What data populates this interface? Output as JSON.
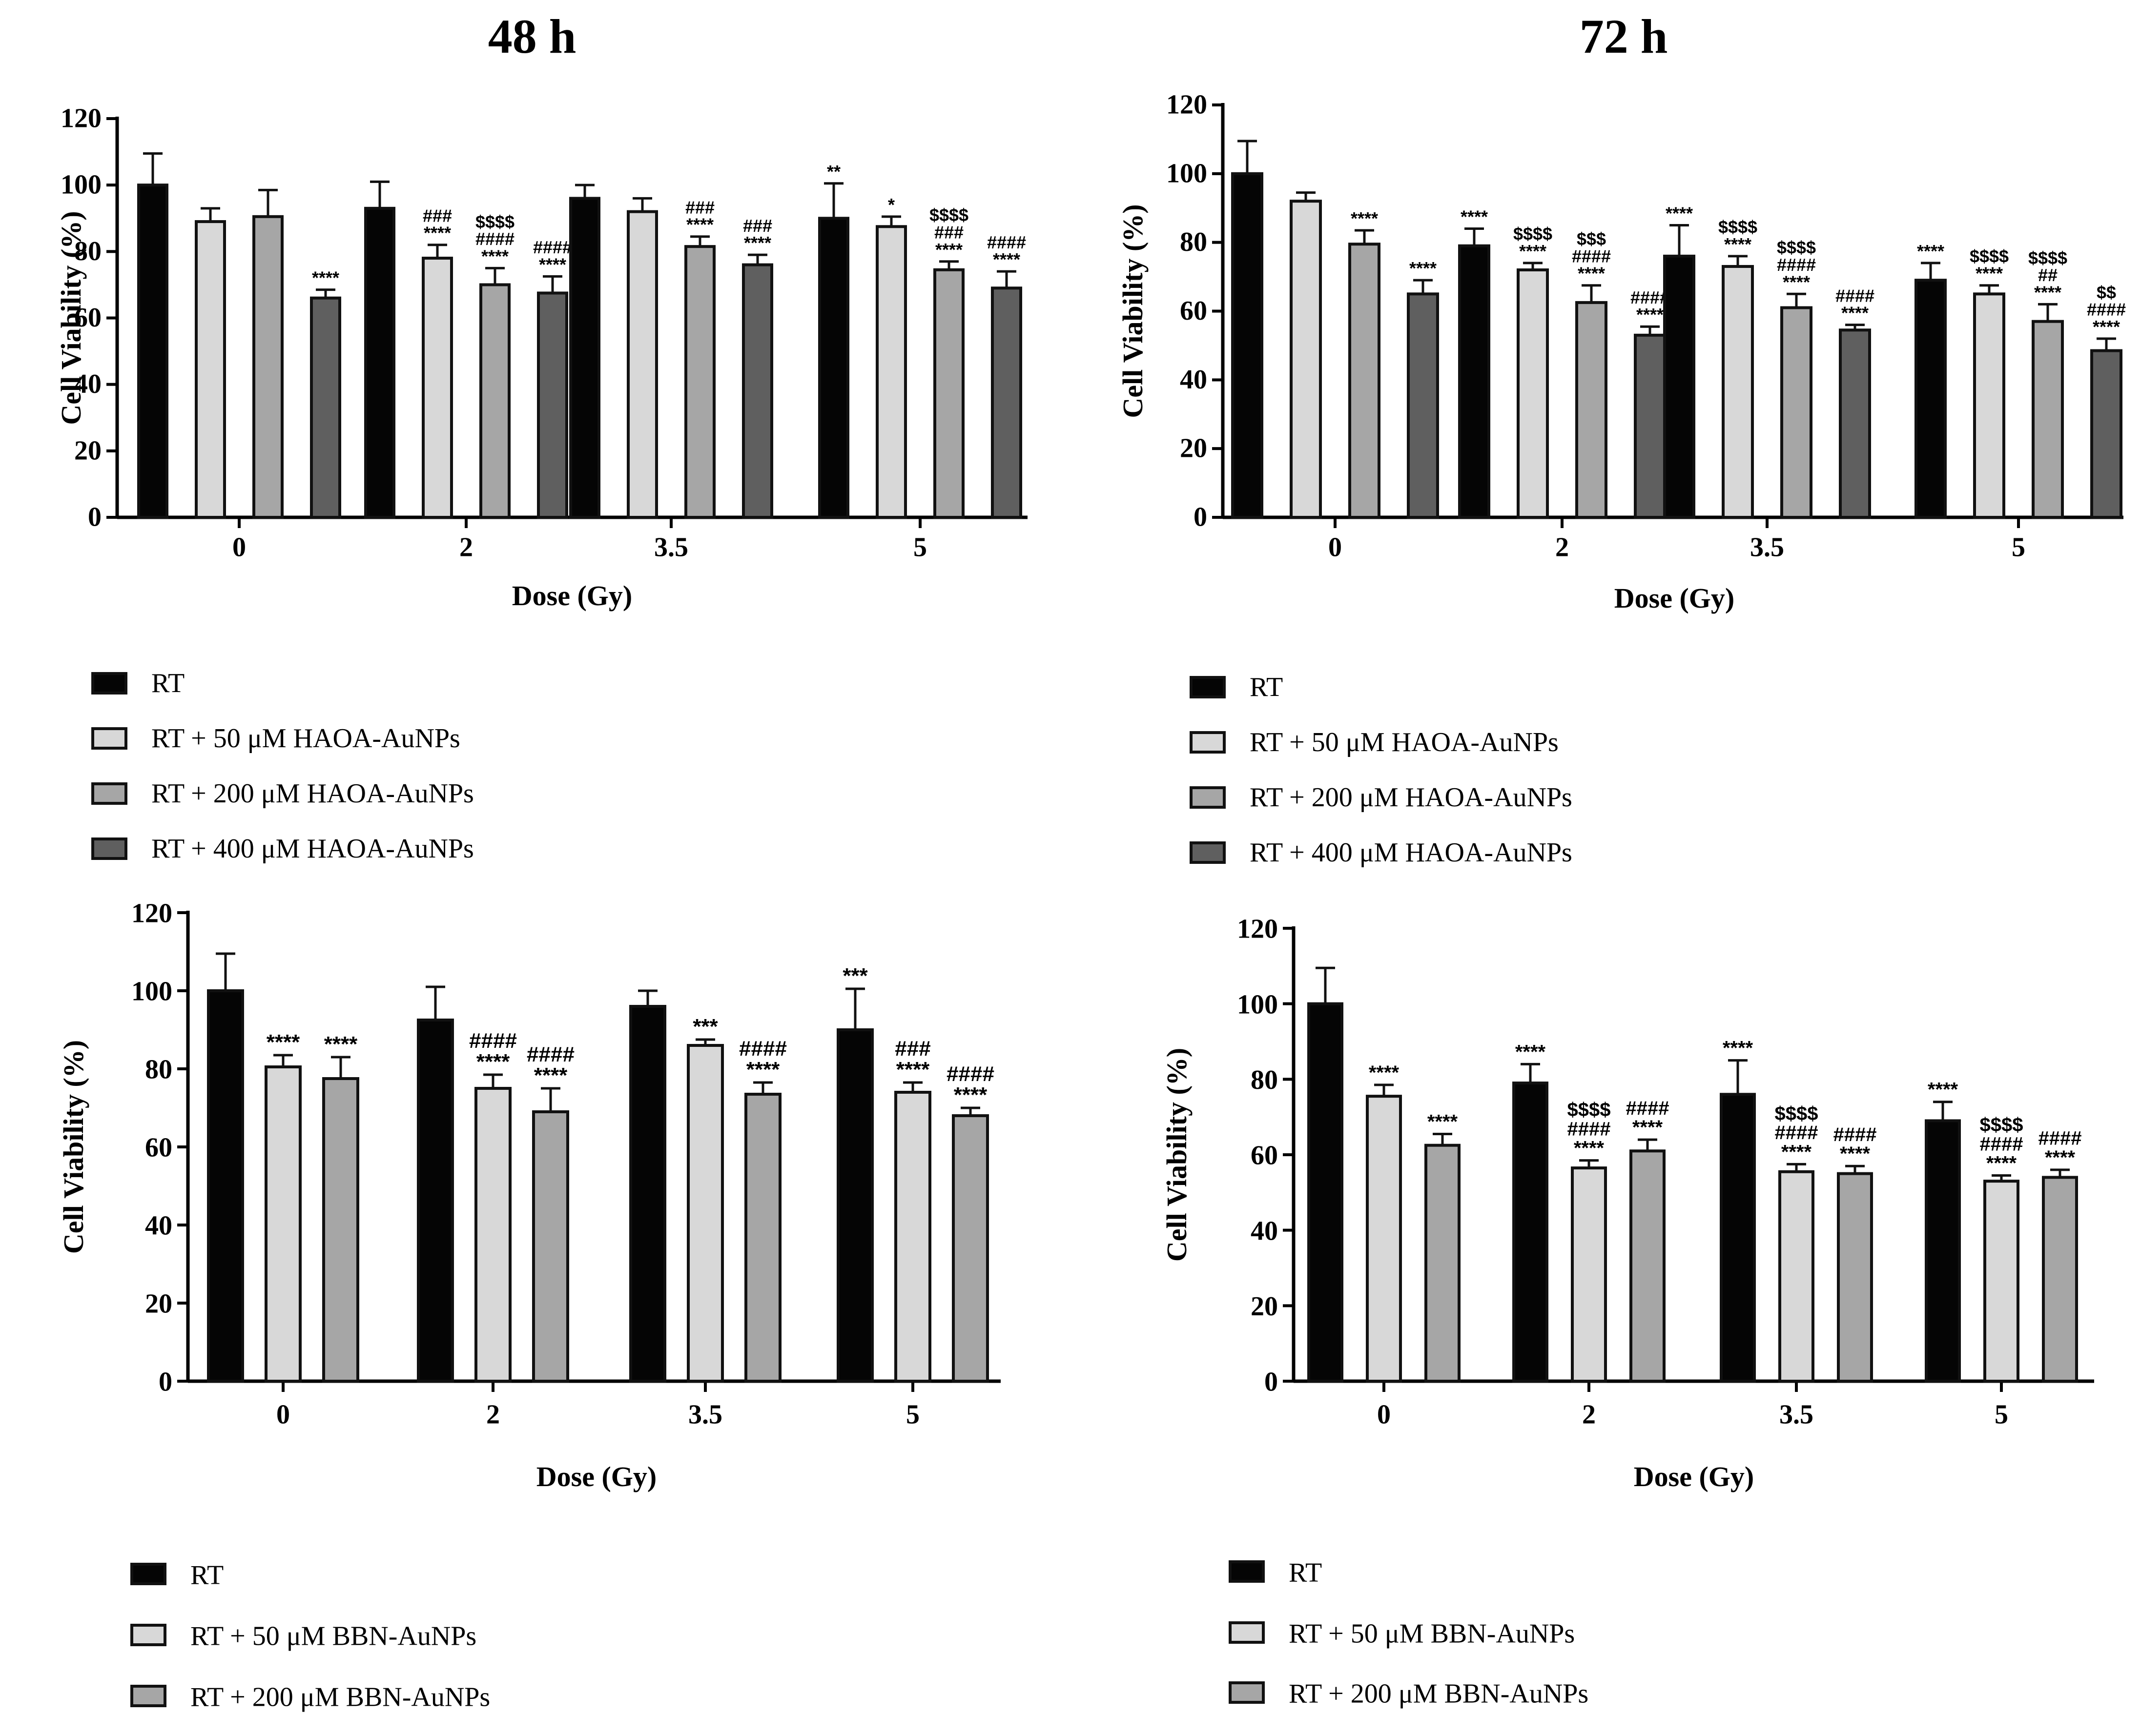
{
  "headers": [
    "48 h",
    "72 h"
  ],
  "colors": {
    "RT": "#050505",
    "c50": "#d8d8d8",
    "c200": "#a6a6a6",
    "c400": "#5f5f5f",
    "edge": "#111111"
  },
  "chart_data": [
    {
      "type": "bar",
      "panel": "top-left",
      "timepoint": "48 h",
      "xlabel": "Dose (Gy)",
      "ylabel": "Cell Viability (%)",
      "ylim": [
        0,
        120
      ],
      "yticks": [
        0,
        20,
        40,
        60,
        80,
        100,
        120
      ],
      "categories": [
        "0",
        "2",
        "3.5",
        "5"
      ],
      "series": [
        {
          "name": "RT",
          "color": "#050505",
          "values": [
            100,
            93,
            96,
            90
          ],
          "errors": [
            9.5,
            8,
            4,
            10.5
          ],
          "labels": [
            [],
            [],
            [],
            [
              "**"
            ]
          ]
        },
        {
          "name": "RT + 50 μM HAOA-AuNPs",
          "color": "#d8d8d8",
          "values": [
            89,
            78,
            92,
            87.5
          ],
          "errors": [
            4,
            4,
            4,
            3
          ],
          "labels": [
            [],
            [
              "###",
              "****"
            ],
            [],
            [
              "*"
            ]
          ]
        },
        {
          "name": "RT + 200 μM HAOA-AuNPs",
          "color": "#a6a6a6",
          "values": [
            90.5,
            70,
            81.5,
            74.5
          ],
          "errors": [
            8,
            5,
            3,
            2.5
          ],
          "labels": [
            [],
            [
              "$$$$",
              "####",
              "****"
            ],
            [
              "###",
              "****"
            ],
            [
              "$$$$",
              "###",
              "****"
            ]
          ]
        },
        {
          "name": "RT + 400 μM HAOA-AuNPs",
          "color": "#5f5f5f",
          "values": [
            66,
            67.5,
            76,
            69
          ],
          "errors": [
            2.5,
            5,
            3,
            5
          ],
          "labels": [
            [
              "****"
            ],
            [
              "####",
              "****"
            ],
            [
              "###",
              "****"
            ],
            [
              "####",
              "****"
            ]
          ]
        }
      ]
    },
    {
      "type": "bar",
      "panel": "top-right",
      "timepoint": "72 h",
      "xlabel": "Dose (Gy)",
      "ylabel": "Cell Viability (%)",
      "ylim": [
        0,
        120
      ],
      "yticks": [
        0,
        20,
        40,
        60,
        80,
        100,
        120
      ],
      "categories": [
        "0",
        "2",
        "3.5",
        "5"
      ],
      "series": [
        {
          "name": "RT",
          "color": "#050505",
          "values": [
            100,
            79,
            76,
            69
          ],
          "errors": [
            9.5,
            5,
            9,
            5
          ],
          "labels": [
            [],
            [
              "****"
            ],
            [
              "****"
            ],
            [
              "****"
            ]
          ]
        },
        {
          "name": "RT + 50 μM HAOA-AuNPs",
          "color": "#d8d8d8",
          "values": [
            92,
            72,
            73,
            65
          ],
          "errors": [
            2.5,
            2,
            3,
            2.5
          ],
          "labels": [
            [],
            [
              "$$$$",
              "****"
            ],
            [
              "$$$$",
              "****"
            ],
            [
              "$$$$",
              "****"
            ]
          ]
        },
        {
          "name": "RT + 200 μM HAOA-AuNPs",
          "color": "#a6a6a6",
          "values": [
            79.5,
            62.5,
            61,
            57
          ],
          "errors": [
            4,
            5,
            4,
            5
          ],
          "labels": [
            [
              "****"
            ],
            [
              "$$$",
              "####",
              "****"
            ],
            [
              "$$$$",
              "####",
              "****"
            ],
            [
              "$$$$",
              "##",
              "****"
            ]
          ]
        },
        {
          "name": "RT + 400 μM HAOA-AuNPs",
          "color": "#5f5f5f",
          "values": [
            65,
            53,
            54.5,
            48.5
          ],
          "errors": [
            4,
            2.5,
            1.5,
            3.5
          ],
          "labels": [
            [
              "****"
            ],
            [
              "####",
              "****"
            ],
            [
              "####",
              "****"
            ],
            [
              "$$",
              "####",
              "****"
            ]
          ]
        }
      ]
    },
    {
      "type": "bar",
      "panel": "bottom-left",
      "timepoint": "48 h",
      "xlabel": "Dose (Gy)",
      "ylabel": "Cell Viability (%)",
      "ylim": [
        0,
        120
      ],
      "yticks": [
        0,
        20,
        40,
        60,
        80,
        100,
        120
      ],
      "categories": [
        "0",
        "2",
        "3.5",
        "5"
      ],
      "series": [
        {
          "name": "RT",
          "color": "#050505",
          "values": [
            100,
            92.5,
            96,
            90
          ],
          "errors": [
            9.5,
            8.5,
            4,
            10.5
          ],
          "labels": [
            [],
            [],
            [],
            [
              "***"
            ]
          ]
        },
        {
          "name": "RT + 50 μM BBN-AuNPs",
          "color": "#d8d8d8",
          "values": [
            80.5,
            75,
            86,
            74
          ],
          "errors": [
            3,
            3.5,
            1.5,
            2.5
          ],
          "labels": [
            [
              "****"
            ],
            [
              "####",
              "****"
            ],
            [
              "***"
            ],
            [
              "###",
              "****"
            ]
          ]
        },
        {
          "name": "RT + 200 μM BBN-AuNPs",
          "color": "#a6a6a6",
          "values": [
            77.5,
            69,
            73.5,
            68
          ],
          "errors": [
            5.5,
            6,
            3,
            2
          ],
          "labels": [
            [
              "****"
            ],
            [
              "####",
              "****"
            ],
            [
              "####",
              "****"
            ],
            [
              "####",
              "****"
            ]
          ]
        }
      ]
    },
    {
      "type": "bar",
      "panel": "bottom-right",
      "timepoint": "72 h",
      "xlabel": "Dose (Gy)",
      "ylabel": "Cell Viability (%)",
      "ylim": [
        0,
        120
      ],
      "yticks": [
        0,
        20,
        40,
        60,
        80,
        100,
        120
      ],
      "categories": [
        "0",
        "2",
        "3.5",
        "5"
      ],
      "series": [
        {
          "name": "RT",
          "color": "#050505",
          "values": [
            100,
            79,
            76,
            69
          ],
          "errors": [
            9.5,
            5,
            9,
            5
          ],
          "labels": [
            [],
            [
              "****"
            ],
            [
              "****"
            ],
            [
              "****"
            ]
          ]
        },
        {
          "name": "RT + 50 μM BBN-AuNPs",
          "color": "#d8d8d8",
          "values": [
            75.5,
            56.5,
            55.5,
            53
          ],
          "errors": [
            3,
            2,
            2,
            1.5
          ],
          "labels": [
            [
              "****"
            ],
            [
              "$$$$",
              "####",
              "****"
            ],
            [
              "$$$$",
              "####",
              "****"
            ],
            [
              "$$$$",
              "####",
              "****"
            ]
          ]
        },
        {
          "name": "RT + 200 μM BBN-AuNPs",
          "color": "#a6a6a6",
          "values": [
            62.5,
            61,
            55,
            54
          ],
          "errors": [
            3,
            3,
            2,
            2
          ],
          "labels": [
            [
              "****"
            ],
            [
              "####",
              "****"
            ],
            [
              "####",
              "****"
            ],
            [
              "####",
              "****"
            ]
          ]
        }
      ]
    }
  ]
}
